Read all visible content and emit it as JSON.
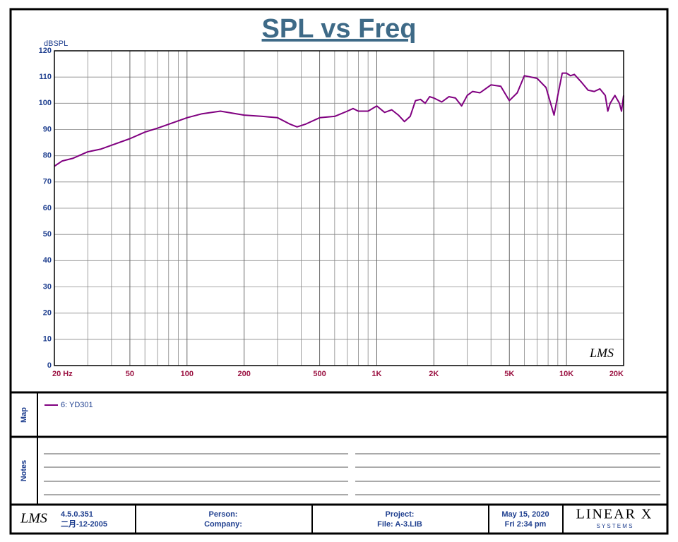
{
  "chart_data": {
    "type": "line",
    "title": "SPL vs Freq",
    "y_label": "dBSPL",
    "logo": "LMS",
    "xscale": "log",
    "xlim": [
      20,
      20000
    ],
    "ylim": [
      0,
      120
    ],
    "xticks": [
      {
        "value": 20,
        "label": "20  Hz"
      },
      50,
      100,
      200,
      500,
      {
        "value": 1000,
        "label": "1K"
      },
      {
        "value": 2000,
        "label": "2K"
      },
      {
        "value": 5000,
        "label": "5K"
      },
      {
        "value": 10000,
        "label": "10K"
      },
      {
        "value": 20000,
        "label": "20K"
      }
    ],
    "xminorticks": [
      30,
      40,
      60,
      70,
      80,
      90,
      300,
      400,
      600,
      700,
      800,
      900,
      3000,
      4000,
      6000,
      7000,
      8000,
      9000
    ],
    "yticks": [
      0,
      10,
      20,
      30,
      40,
      50,
      60,
      70,
      80,
      90,
      100,
      110,
      120
    ],
    "grid": true,
    "x": [
      20,
      22,
      25,
      30,
      35,
      40,
      50,
      60,
      70,
      80,
      100,
      120,
      150,
      200,
      250,
      300,
      350,
      380,
      420,
      500,
      600,
      700,
      750,
      800,
      900,
      1000,
      1100,
      1200,
      1300,
      1400,
      1500,
      1600,
      1700,
      1800,
      1900,
      2000,
      2200,
      2400,
      2600,
      2800,
      3000,
      3200,
      3500,
      4000,
      4500,
      5000,
      5500,
      6000,
      7000,
      7800,
      8400,
      8600,
      9000,
      9500,
      10000,
      10500,
      11000,
      12000,
      13000,
      14000,
      15000,
      16000,
      16500,
      17000,
      18000,
      19000,
      19500,
      20000
    ],
    "series": [
      {
        "name": "6: YD301",
        "color": "#800080",
        "values": [
          76,
          78,
          79,
          81.5,
          82.5,
          84,
          86.5,
          89,
          90.5,
          92,
          94.5,
          96,
          97,
          95.5,
          95,
          94.5,
          92,
          91,
          92,
          94.5,
          95,
          97,
          98,
          97,
          97,
          99,
          96.5,
          97.5,
          95.5,
          93,
          95,
          101,
          101.5,
          100,
          102.5,
          102,
          100.5,
          102.5,
          102,
          99,
          103,
          104.5,
          104,
          107,
          106.5,
          101,
          104,
          110.5,
          109.5,
          106,
          98,
          95.5,
          103,
          111.5,
          111.5,
          110.5,
          111,
          108,
          105,
          104.5,
          105.5,
          103,
          97,
          100,
          103,
          100,
          97,
          103
        ]
      }
    ]
  },
  "map": {
    "label": "Map"
  },
  "notes": {
    "label": "Notes"
  },
  "footer": {
    "logo": "LMS",
    "version": "4.5.0.351",
    "build_date": "二月-12-2005",
    "person": "Person:",
    "company": "Company:",
    "project": "Project:",
    "file": "File: A-3.LIB",
    "date": "May 15, 2020",
    "time": "Fri  2:34 pm",
    "brand": "LINEAR X",
    "brand_sub": "S Y S T E M S"
  }
}
